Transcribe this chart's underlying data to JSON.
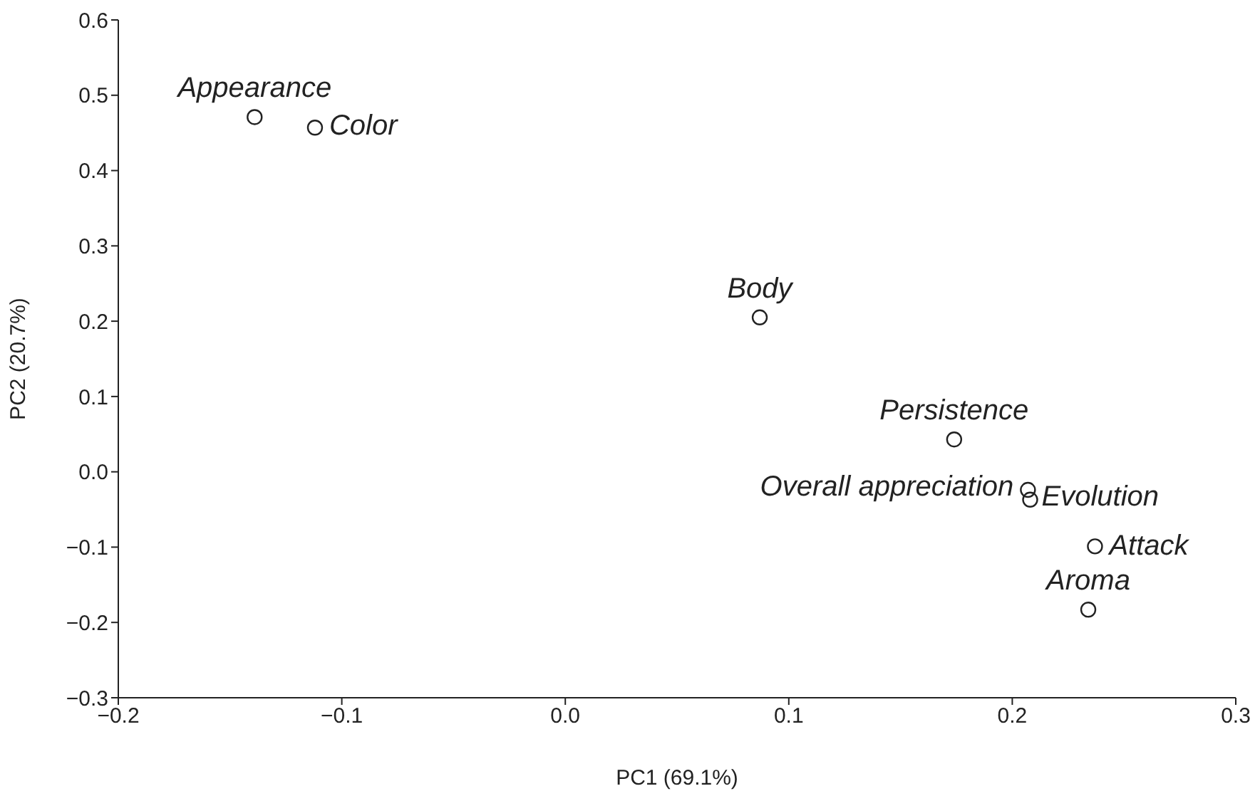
{
  "chart_data": {
    "type": "scatter",
    "xlabel": "PC1 (69.1%)",
    "ylabel": "PC2 (20.7%)",
    "x": [
      -0.139,
      -0.112,
      0.087,
      0.174,
      0.207,
      0.208,
      0.237,
      0.234
    ],
    "values": [
      0.471,
      0.457,
      0.205,
      0.043,
      -0.024,
      -0.037,
      -0.099,
      -0.183
    ],
    "color": "#222222",
    "marker": "circle",
    "annotations": [
      {
        "text": "Appearance",
        "x": -0.139,
        "y": 0.471
      },
      {
        "text": "Color",
        "x": -0.112,
        "y": 0.457
      },
      {
        "text": "Body",
        "x": 0.087,
        "y": 0.205
      },
      {
        "text": "Persistence",
        "x": 0.174,
        "y": 0.043
      },
      {
        "text": "Overall appreciation",
        "x": 0.207,
        "y": -0.024
      },
      {
        "text": "Evolution",
        "x": 0.208,
        "y": -0.037
      },
      {
        "text": "Attack",
        "x": 0.237,
        "y": -0.099
      },
      {
        "text": "Aroma",
        "x": 0.234,
        "y": -0.183
      }
    ],
    "xlim": [
      -0.2,
      0.3
    ],
    "xticks": [
      {
        "value": -0.2,
        "label": "−0.2"
      },
      {
        "value": -0.1,
        "label": "−0.1"
      },
      {
        "value": 0,
        "label": "0.0"
      },
      {
        "value": 0.1,
        "label": "0.1"
      },
      {
        "value": 0.2,
        "label": "0.2"
      },
      {
        "value": 0.3,
        "label": "0.3"
      }
    ],
    "ylim": [
      -0.3,
      0.6
    ],
    "yticks": [
      {
        "value": -0.3,
        "label": "−0.3"
      },
      {
        "value": -0.2,
        "label": "−0.2"
      },
      {
        "value": -0.1,
        "label": "−0.1"
      },
      {
        "value": 0,
        "label": "0.0"
      },
      {
        "value": 0.1,
        "label": "0.1"
      },
      {
        "value": 0.2,
        "label": "0.2"
      },
      {
        "value": 0.3,
        "label": "0.3"
      },
      {
        "value": 0.4,
        "label": "0.4"
      },
      {
        "value": 0.5,
        "label": "0.5"
      },
      {
        "value": 0.6,
        "label": "0.6"
      }
    ]
  }
}
